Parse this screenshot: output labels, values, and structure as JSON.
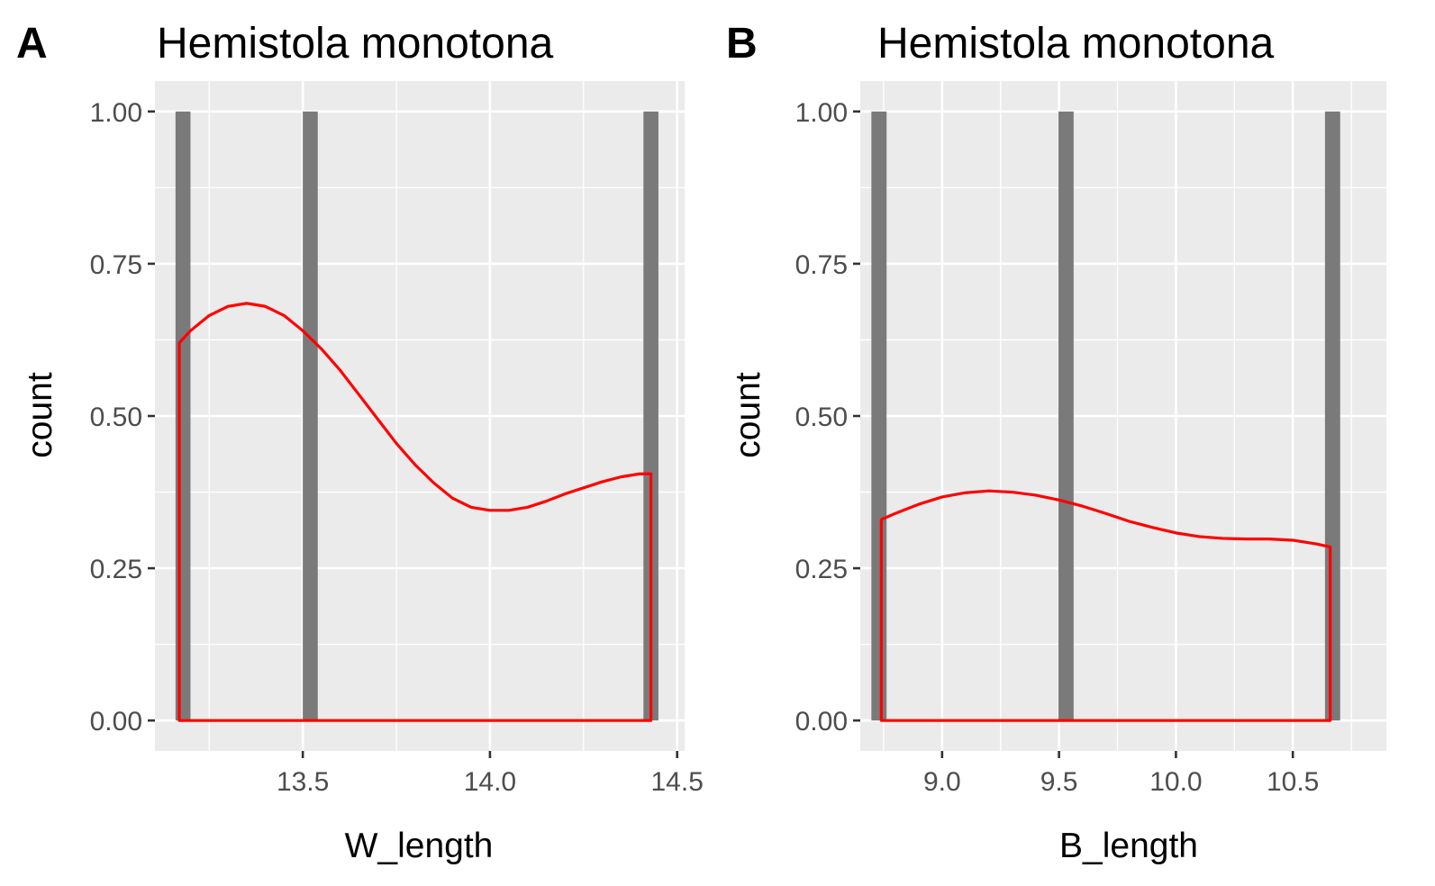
{
  "chart_data": [
    {
      "type": "bar",
      "tag": "A",
      "title": "Hemistola monotona",
      "xlabel": "W_length",
      "ylabel": "count",
      "xlim": [
        13.105,
        14.52
      ],
      "ylim": [
        -0.05,
        1.05
      ],
      "x_ticks": [
        13.5,
        14.0,
        14.5
      ],
      "x_tick_labels": [
        "13.5",
        "14.0",
        "14.5"
      ],
      "y_ticks": [
        0,
        0.25,
        0.5,
        0.75,
        1
      ],
      "y_tick_labels": [
        "0.00",
        "0.25",
        "0.50",
        "0.75",
        "1.00"
      ],
      "grid": true,
      "bars": {
        "x": [
          13.18,
          13.52,
          14.43
        ],
        "values": [
          1,
          1,
          1
        ],
        "width": 0.04,
        "color": "#7a7a7a"
      },
      "density": {
        "color": "#ff0000",
        "x": [
          13.17,
          13.2,
          13.25,
          13.3,
          13.35,
          13.4,
          13.45,
          13.5,
          13.55,
          13.6,
          13.65,
          13.7,
          13.75,
          13.8,
          13.85,
          13.9,
          13.95,
          14.0,
          14.05,
          14.1,
          14.15,
          14.2,
          14.25,
          14.3,
          14.35,
          14.4,
          14.43
        ],
        "y": [
          0.62,
          0.64,
          0.665,
          0.68,
          0.685,
          0.68,
          0.665,
          0.64,
          0.61,
          0.575,
          0.535,
          0.495,
          0.455,
          0.42,
          0.39,
          0.365,
          0.35,
          0.345,
          0.345,
          0.35,
          0.36,
          0.372,
          0.382,
          0.392,
          0.4,
          0.405,
          0.405
        ]
      }
    },
    {
      "type": "bar",
      "tag": "B",
      "title": "Hemistola monotona",
      "xlabel": "B_length",
      "ylabel": "count",
      "xlim": [
        8.65,
        10.9
      ],
      "ylim": [
        -0.05,
        1.05
      ],
      "x_ticks": [
        9.0,
        9.5,
        10.0,
        10.5
      ],
      "x_tick_labels": [
        "9.0",
        "9.5",
        "10.0",
        "10.5"
      ],
      "y_ticks": [
        0,
        0.25,
        0.5,
        0.75,
        1
      ],
      "y_tick_labels": [
        "0.00",
        "0.25",
        "0.50",
        "0.75",
        "1.00"
      ],
      "grid": true,
      "bars": {
        "x": [
          8.73,
          9.53,
          10.67
        ],
        "values": [
          1,
          1,
          1
        ],
        "width": 0.065,
        "color": "#7a7a7a"
      },
      "density": {
        "color": "#ff0000",
        "x": [
          8.74,
          8.8,
          8.9,
          9.0,
          9.1,
          9.2,
          9.3,
          9.4,
          9.5,
          9.6,
          9.7,
          9.8,
          9.9,
          10.0,
          10.1,
          10.2,
          10.3,
          10.4,
          10.5,
          10.6,
          10.66
        ],
        "y": [
          0.33,
          0.34,
          0.355,
          0.367,
          0.374,
          0.377,
          0.375,
          0.37,
          0.362,
          0.352,
          0.34,
          0.327,
          0.317,
          0.308,
          0.302,
          0.299,
          0.298,
          0.298,
          0.296,
          0.29,
          0.285
        ]
      }
    }
  ]
}
